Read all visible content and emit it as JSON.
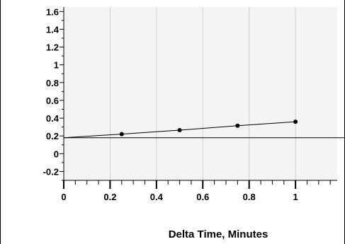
{
  "chart_data": {
    "type": "line",
    "title": "",
    "xlabel": "Delta Time, Minutes",
    "ylabel": "",
    "xlim": [
      0,
      1.18
    ],
    "ylim": [
      -0.3,
      1.65
    ],
    "x_ticks": [
      "0",
      "0.2",
      "0.4",
      "0.6",
      "0.8",
      "1"
    ],
    "y_ticks": [
      "1.6",
      "1.4",
      "1.2",
      "1",
      "0.8",
      "0.6",
      "0.4",
      "0.2",
      "0",
      "-0.2"
    ],
    "grid": "vertical",
    "background_color": "#f4f4f4",
    "series": [
      {
        "x": [
          0,
          0.25,
          0.5,
          0.75,
          1
        ],
        "y": [
          0.18,
          0.22,
          0.265,
          0.315,
          0.36
        ],
        "color": "#000000",
        "marker": "circle"
      }
    ],
    "reference_line": {
      "y": 0.18,
      "color": "#000000"
    }
  }
}
